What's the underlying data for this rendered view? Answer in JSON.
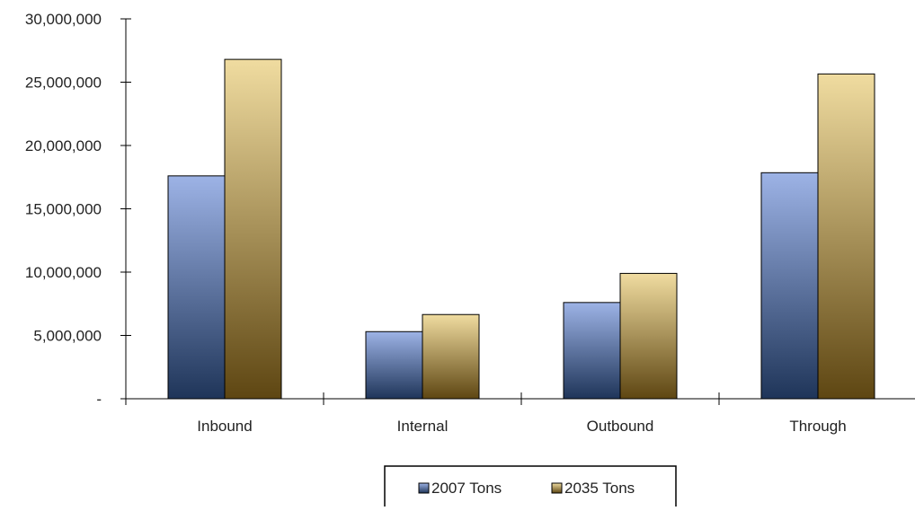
{
  "chart_data": {
    "type": "bar",
    "title": "",
    "xlabel": "",
    "ylabel": "",
    "categories": [
      "Inbound",
      "Internal",
      "Outbound",
      "Through"
    ],
    "series": [
      {
        "name": "2007 Tons",
        "values": [
          17600000,
          5300000,
          7600000,
          17850000
        ],
        "color_top": "#9db3e6",
        "color_bottom": "#1f3559"
      },
      {
        "name": "2035 Tons",
        "values": [
          26800000,
          6650000,
          9900000,
          25650000
        ],
        "color_top": "#f0dca0",
        "color_bottom": "#5e4612"
      }
    ],
    "ylim": [
      0,
      30000000
    ],
    "yticks": [
      0,
      5000000,
      10000000,
      15000000,
      20000000,
      25000000,
      30000000
    ],
    "ytick_labels": [
      "-",
      "5,000,000",
      "10,000,000",
      "15,000,000",
      "20,000,000",
      "25,000,000",
      "30,000,000"
    ],
    "grid": false,
    "legend": {
      "position": "bottom",
      "entries": [
        "2007 Tons",
        "2035 Tons"
      ]
    }
  }
}
